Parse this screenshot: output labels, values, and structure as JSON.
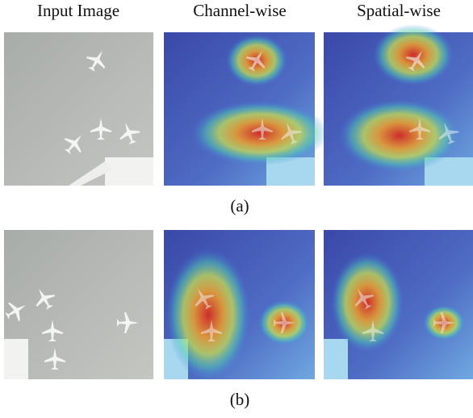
{
  "columns": [
    "Input Image",
    "Channel-wise",
    "Spatial-wise"
  ],
  "rows": [
    {
      "label": "(a)"
    },
    {
      "label": "(b)"
    }
  ]
}
